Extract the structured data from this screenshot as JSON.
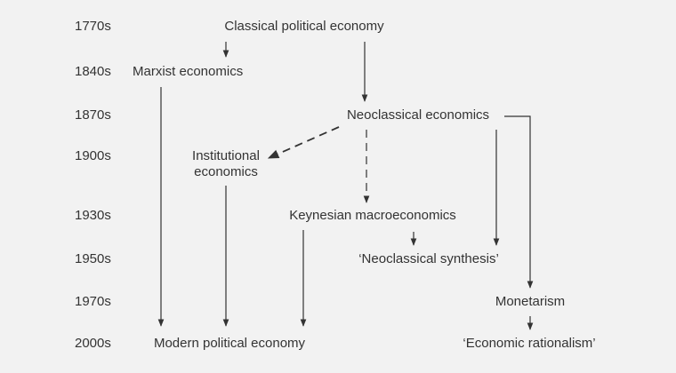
{
  "years": [
    "1770s",
    "1840s",
    "1870s",
    "1900s",
    "1930s",
    "1950s",
    "1970s",
    "2000s"
  ],
  "nodes": {
    "classical": "Classical political economy",
    "marxist": "Marxist economics",
    "neoclassical": "Neoclassical economics",
    "institutional": "Institutional economics",
    "keynesian": "Keynesian macroeconomics",
    "synthesis": "‘Neoclassical synthesis’",
    "monetarism": "Monetarism",
    "modern": "Modern political economy",
    "rationalism": "‘Economic rationalism’"
  },
  "colors": {
    "background": "#f2f2f2",
    "text": "#333333",
    "line": "#333333"
  }
}
